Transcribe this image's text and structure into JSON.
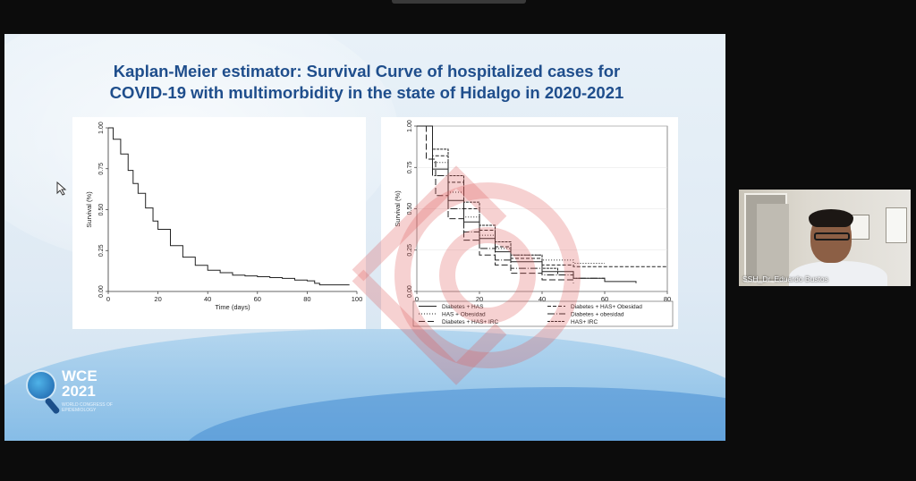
{
  "slide": {
    "title_line1": "Kaplan-Meier estimator: Survival Curve of hospitalized cases for",
    "title_line2": "COVID-19 with multimorbidity in the state of Hidalgo in 2020-2021"
  },
  "logo": {
    "text_line1": "WCE",
    "text_line2": "2021",
    "subtitle": "WORLD CONGRESS OF EPIDEMIOLOGY"
  },
  "video": {
    "participant_name": "SSH_Dr. Eduardo Bustos"
  },
  "colors": {
    "title": "#1f4e8c",
    "watermark": "#e05a5a",
    "slide_bg": "#e8f1f8"
  },
  "chart_data": [
    {
      "type": "line",
      "xlabel": "Time (days)",
      "ylabel": "Survival (%)",
      "xlim": [
        0,
        100
      ],
      "ylim": [
        0,
        1
      ],
      "xticks": [
        "0",
        "20",
        "40",
        "60",
        "80",
        "100"
      ],
      "yticks": [
        "0.00",
        "0.25",
        "0.50",
        "0.75",
        "1.00"
      ],
      "series": [
        {
          "x": [
            0,
            2,
            5,
            8,
            10,
            12,
            15,
            18,
            20,
            25,
            30,
            35,
            40,
            45,
            50,
            55,
            60,
            65,
            70,
            75,
            80,
            83,
            85,
            90,
            97
          ],
          "y": [
            1.0,
            0.93,
            0.84,
            0.74,
            0.66,
            0.6,
            0.51,
            0.43,
            0.38,
            0.28,
            0.21,
            0.16,
            0.13,
            0.115,
            0.1,
            0.095,
            0.09,
            0.085,
            0.08,
            0.07,
            0.065,
            0.05,
            0.04,
            0.04,
            0.04
          ]
        }
      ]
    },
    {
      "type": "line",
      "xlabel": "Time (days)",
      "ylabel": "Survival (%)",
      "xlim": [
        0,
        80
      ],
      "ylim": [
        0,
        1
      ],
      "xticks": [
        "0",
        "20",
        "40",
        "60",
        "80"
      ],
      "yticks": [
        "0.00",
        "0.25",
        "0.50",
        "0.75",
        "1.00"
      ],
      "legend_placement": "bottom",
      "series": [
        {
          "name": "Diabetes + HAS",
          "dash": "",
          "x": [
            0,
            5,
            10,
            15,
            20,
            25,
            30,
            40,
            50,
            60,
            70
          ],
          "y": [
            1.0,
            0.74,
            0.55,
            0.42,
            0.32,
            0.24,
            0.18,
            0.12,
            0.08,
            0.06,
            0.05
          ]
        },
        {
          "name": "Diabetes + HAS+ Obesidad",
          "dash": "4,2",
          "x": [
            0,
            5,
            10,
            15,
            20,
            25,
            30,
            40,
            50,
            80
          ],
          "y": [
            1.0,
            0.82,
            0.66,
            0.5,
            0.37,
            0.27,
            0.2,
            0.16,
            0.15,
            0.15
          ]
        },
        {
          "name": "HAS + Obesidad",
          "dash": "1,2",
          "x": [
            0,
            5,
            10,
            15,
            20,
            25,
            30,
            40,
            50,
            60
          ],
          "y": [
            1.0,
            0.78,
            0.6,
            0.45,
            0.34,
            0.26,
            0.22,
            0.19,
            0.17,
            0.17
          ]
        },
        {
          "name": "Diabetes + obesidad",
          "dash": "8,2,1,2",
          "x": [
            0,
            5,
            10,
            15,
            20,
            25,
            30,
            40,
            50,
            60
          ],
          "y": [
            1.0,
            0.7,
            0.5,
            0.36,
            0.26,
            0.19,
            0.14,
            0.1,
            0.08,
            0.07
          ]
        },
        {
          "name": "Diabetes + HAS+ IRC",
          "dash": "7,3",
          "x": [
            0,
            3,
            6,
            10,
            15,
            20,
            25,
            30,
            40,
            50
          ],
          "y": [
            1.0,
            0.8,
            0.58,
            0.44,
            0.31,
            0.22,
            0.16,
            0.11,
            0.07,
            0.05
          ]
        },
        {
          "name": "HAS+ IRC",
          "dash": "3,1",
          "x": [
            0,
            5,
            10,
            15,
            20,
            25,
            30,
            40,
            45
          ],
          "y": [
            1.0,
            0.86,
            0.7,
            0.54,
            0.4,
            0.3,
            0.22,
            0.14,
            0.1
          ]
        }
      ]
    }
  ]
}
